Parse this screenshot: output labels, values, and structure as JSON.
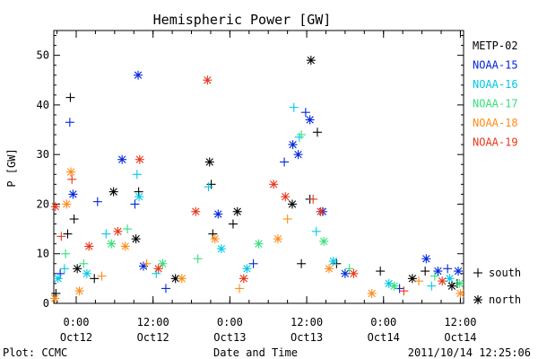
{
  "chart_data": {
    "type": "scatter",
    "title": "Hemispheric Power [GW]",
    "ylabel": "P [GW]",
    "xlabel": "Date and Time",
    "xlim": [
      "2011-10-11T20:30",
      "2011-10-14T12:30"
    ],
    "ylim": [
      0,
      55
    ],
    "yticks": [
      0,
      10,
      20,
      30,
      40,
      50
    ],
    "xticks": [
      {
        "t": "2011-10-12T00:00",
        "time": "0:00",
        "date": "Oct12"
      },
      {
        "t": "2011-10-12T12:00",
        "time": "12:00",
        "date": "Oct12"
      },
      {
        "t": "2011-10-13T00:00",
        "time": "0:00",
        "date": "Oct13"
      },
      {
        "t": "2011-10-13T12:00",
        "time": "12:00",
        "date": "Oct13"
      },
      {
        "t": "2011-10-14T00:00",
        "time": "0:00",
        "date": "Oct14"
      },
      {
        "t": "2011-10-14T12:00",
        "time": "12:00",
        "date": "Oct14"
      }
    ],
    "grid": false,
    "legend_position": "right",
    "marker_legend": [
      {
        "marker": "plus",
        "label": "south"
      },
      {
        "marker": "asterisk",
        "label": "north"
      }
    ],
    "series": [
      {
        "name": "METP-02",
        "color": "#000000",
        "points": [
          {
            "x": "2011-10-11T20:50",
            "y": 2,
            "m": "plus"
          },
          {
            "x": "2011-10-11T22:40",
            "y": 14,
            "m": "plus"
          },
          {
            "x": "2011-10-11T23:05",
            "y": 41.5,
            "m": "plus"
          },
          {
            "x": "2011-10-11T23:40",
            "y": 17,
            "m": "plus"
          },
          {
            "x": "2011-10-12T00:10",
            "y": 7,
            "m": "asterisk"
          },
          {
            "x": "2011-10-12T02:50",
            "y": 5,
            "m": "plus"
          },
          {
            "x": "2011-10-12T05:50",
            "y": 22.5,
            "m": "asterisk"
          },
          {
            "x": "2011-10-12T09:45",
            "y": 22.5,
            "m": "plus"
          },
          {
            "x": "2011-10-12T09:20",
            "y": 13,
            "m": "asterisk"
          },
          {
            "x": "2011-10-12T15:30",
            "y": 5,
            "m": "asterisk"
          },
          {
            "x": "2011-10-12T20:50",
            "y": 28.5,
            "m": "asterisk"
          },
          {
            "x": "2011-10-12T21:05",
            "y": 24,
            "m": "plus"
          },
          {
            "x": "2011-10-12T21:20",
            "y": 14,
            "m": "plus"
          },
          {
            "x": "2011-10-13T00:30",
            "y": 16,
            "m": "plus"
          },
          {
            "x": "2011-10-13T01:10",
            "y": 18.5,
            "m": "asterisk"
          },
          {
            "x": "2011-10-13T09:45",
            "y": 20,
            "m": "asterisk"
          },
          {
            "x": "2011-10-13T11:10",
            "y": 8,
            "m": "plus"
          },
          {
            "x": "2011-10-13T12:40",
            "y": 49,
            "m": "asterisk"
          },
          {
            "x": "2011-10-13T13:40",
            "y": 34.5,
            "m": "plus"
          },
          {
            "x": "2011-10-13T12:30",
            "y": 21,
            "m": "plus"
          },
          {
            "x": "2011-10-13T16:40",
            "y": 8,
            "m": "plus"
          },
          {
            "x": "2011-10-13T23:30",
            "y": 6.5,
            "m": "plus"
          },
          {
            "x": "2011-10-14T04:30",
            "y": 5,
            "m": "asterisk"
          },
          {
            "x": "2011-10-14T06:30",
            "y": 6.5,
            "m": "plus"
          },
          {
            "x": "2011-10-14T10:40",
            "y": 3.5,
            "m": "asterisk"
          },
          {
            "x": "2011-10-14T11:30",
            "y": 4,
            "m": "plus"
          }
        ]
      },
      {
        "name": "NOAA-15",
        "color": "#0026d9",
        "points": [
          {
            "x": "2011-10-11T21:30",
            "y": 6,
            "m": "plus"
          },
          {
            "x": "2011-10-11T23:00",
            "y": 36.5,
            "m": "plus"
          },
          {
            "x": "2011-10-11T23:30",
            "y": 22,
            "m": "asterisk"
          },
          {
            "x": "2011-10-12T03:20",
            "y": 20.5,
            "m": "plus"
          },
          {
            "x": "2011-10-12T07:10",
            "y": 29,
            "m": "asterisk"
          },
          {
            "x": "2011-10-12T09:10",
            "y": 20,
            "m": "plus"
          },
          {
            "x": "2011-10-12T09:40",
            "y": 46,
            "m": "asterisk"
          },
          {
            "x": "2011-10-12T10:30",
            "y": 7.5,
            "m": "asterisk"
          },
          {
            "x": "2011-10-12T14:00",
            "y": 3,
            "m": "plus"
          },
          {
            "x": "2011-10-12T22:10",
            "y": 18,
            "m": "asterisk"
          },
          {
            "x": "2011-10-13T03:40",
            "y": 8,
            "m": "plus"
          },
          {
            "x": "2011-10-13T08:30",
            "y": 28.5,
            "m": "plus"
          },
          {
            "x": "2011-10-13T09:50",
            "y": 32,
            "m": "asterisk"
          },
          {
            "x": "2011-10-13T10:40",
            "y": 30,
            "m": "asterisk"
          },
          {
            "x": "2011-10-13T11:50",
            "y": 38.5,
            "m": "plus"
          },
          {
            "x": "2011-10-13T12:30",
            "y": 37,
            "m": "asterisk"
          },
          {
            "x": "2011-10-13T14:30",
            "y": 18.5,
            "m": "asterisk"
          },
          {
            "x": "2011-10-13T18:00",
            "y": 6,
            "m": "asterisk"
          },
          {
            "x": "2011-10-14T02:30",
            "y": 3,
            "m": "plus"
          },
          {
            "x": "2011-10-14T06:40",
            "y": 9,
            "m": "asterisk"
          },
          {
            "x": "2011-10-14T08:30",
            "y": 6.5,
            "m": "asterisk"
          },
          {
            "x": "2011-10-14T10:00",
            "y": 7,
            "m": "plus"
          },
          {
            "x": "2011-10-14T11:40",
            "y": 6.5,
            "m": "asterisk"
          }
        ]
      },
      {
        "name": "NOAA-16",
        "color": "#00c8e6",
        "points": [
          {
            "x": "2011-10-11T21:10",
            "y": 5,
            "m": "asterisk"
          },
          {
            "x": "2011-10-11T22:10",
            "y": 7,
            "m": "plus"
          },
          {
            "x": "2011-10-12T01:40",
            "y": 6,
            "m": "asterisk"
          },
          {
            "x": "2011-10-12T04:40",
            "y": 14,
            "m": "plus"
          },
          {
            "x": "2011-10-12T09:50",
            "y": 21.5,
            "m": "asterisk"
          },
          {
            "x": "2011-10-12T09:30",
            "y": 26,
            "m": "plus"
          },
          {
            "x": "2011-10-12T12:30",
            "y": 6,
            "m": "plus"
          },
          {
            "x": "2011-10-12T20:40",
            "y": 23.5,
            "m": "plus"
          },
          {
            "x": "2011-10-12T22:40",
            "y": 11,
            "m": "asterisk"
          },
          {
            "x": "2011-10-13T02:40",
            "y": 7,
            "m": "asterisk"
          },
          {
            "x": "2011-10-13T10:00",
            "y": 39.5,
            "m": "plus"
          },
          {
            "x": "2011-10-13T10:50",
            "y": 33.5,
            "m": "plus"
          },
          {
            "x": "2011-10-13T13:30",
            "y": 14.5,
            "m": "plus"
          },
          {
            "x": "2011-10-13T16:10",
            "y": 8.5,
            "m": "asterisk"
          },
          {
            "x": "2011-10-14T00:50",
            "y": 4,
            "m": "asterisk"
          },
          {
            "x": "2011-10-14T07:30",
            "y": 3.5,
            "m": "plus"
          },
          {
            "x": "2011-10-14T10:20",
            "y": 5,
            "m": "asterisk"
          }
        ]
      },
      {
        "name": "NOAA-17",
        "color": "#33e07a",
        "points": [
          {
            "x": "2011-10-11T22:20",
            "y": 10,
            "m": "plus"
          },
          {
            "x": "2011-10-12T01:10",
            "y": 8,
            "m": "plus"
          },
          {
            "x": "2011-10-12T05:30",
            "y": 12,
            "m": "asterisk"
          },
          {
            "x": "2011-10-12T08:00",
            "y": 15,
            "m": "plus"
          },
          {
            "x": "2011-10-12T13:30",
            "y": 8,
            "m": "asterisk"
          },
          {
            "x": "2011-10-12T19:00",
            "y": 9,
            "m": "plus"
          },
          {
            "x": "2011-10-13T04:30",
            "y": 12,
            "m": "asterisk"
          },
          {
            "x": "2011-10-13T11:10",
            "y": 34,
            "m": "plus"
          },
          {
            "x": "2011-10-13T14:40",
            "y": 12.5,
            "m": "asterisk"
          },
          {
            "x": "2011-10-13T18:40",
            "y": 7,
            "m": "plus"
          },
          {
            "x": "2011-10-14T01:40",
            "y": 3.5,
            "m": "asterisk"
          },
          {
            "x": "2011-10-14T08:00",
            "y": 5.5,
            "m": "plus"
          },
          {
            "x": "2011-10-14T11:50",
            "y": 4,
            "m": "asterisk"
          }
        ]
      },
      {
        "name": "NOAA-18",
        "color": "#ff8c1a",
        "points": [
          {
            "x": "2011-10-11T20:40",
            "y": 1,
            "m": "asterisk"
          },
          {
            "x": "2011-10-11T22:30",
            "y": 20,
            "m": "asterisk"
          },
          {
            "x": "2011-10-11T23:10",
            "y": 26.5,
            "m": "asterisk"
          },
          {
            "x": "2011-10-12T00:30",
            "y": 2.5,
            "m": "asterisk"
          },
          {
            "x": "2011-10-12T04:00",
            "y": 5.5,
            "m": "plus"
          },
          {
            "x": "2011-10-12T07:40",
            "y": 11.5,
            "m": "asterisk"
          },
          {
            "x": "2011-10-12T11:00",
            "y": 8,
            "m": "plus"
          },
          {
            "x": "2011-10-12T16:30",
            "y": 5,
            "m": "asterisk"
          },
          {
            "x": "2011-10-12T21:40",
            "y": 13,
            "m": "asterisk"
          },
          {
            "x": "2011-10-13T01:30",
            "y": 3,
            "m": "plus"
          },
          {
            "x": "2011-10-13T07:30",
            "y": 13,
            "m": "asterisk"
          },
          {
            "x": "2011-10-13T09:00",
            "y": 17,
            "m": "plus"
          },
          {
            "x": "2011-10-13T15:30",
            "y": 7,
            "m": "asterisk"
          },
          {
            "x": "2011-10-13T22:10",
            "y": 2,
            "m": "asterisk"
          },
          {
            "x": "2011-10-14T05:30",
            "y": 4.5,
            "m": "plus"
          },
          {
            "x": "2011-10-14T12:00",
            "y": 2,
            "m": "asterisk"
          }
        ]
      },
      {
        "name": "NOAA-19",
        "color": "#e8361a",
        "points": [
          {
            "x": "2011-10-11T20:45",
            "y": 19.5,
            "m": "asterisk"
          },
          {
            "x": "2011-10-11T21:40",
            "y": 13.5,
            "m": "plus"
          },
          {
            "x": "2011-10-11T23:20",
            "y": 25,
            "m": "plus"
          },
          {
            "x": "2011-10-12T02:00",
            "y": 11.5,
            "m": "asterisk"
          },
          {
            "x": "2011-10-12T06:30",
            "y": 14.5,
            "m": "asterisk"
          },
          {
            "x": "2011-10-12T09:55",
            "y": 29,
            "m": "asterisk"
          },
          {
            "x": "2011-10-12T12:50",
            "y": 7,
            "m": "asterisk"
          },
          {
            "x": "2011-10-12T18:40",
            "y": 18.5,
            "m": "asterisk"
          },
          {
            "x": "2011-10-12T20:30",
            "y": 45,
            "m": "asterisk"
          },
          {
            "x": "2011-10-13T02:10",
            "y": 5,
            "m": "asterisk"
          },
          {
            "x": "2011-10-13T06:50",
            "y": 24,
            "m": "asterisk"
          },
          {
            "x": "2011-10-13T08:40",
            "y": 21.5,
            "m": "asterisk"
          },
          {
            "x": "2011-10-13T13:00",
            "y": 21,
            "m": "plus"
          },
          {
            "x": "2011-10-13T14:10",
            "y": 18.5,
            "m": "asterisk"
          },
          {
            "x": "2011-10-13T19:20",
            "y": 6,
            "m": "asterisk"
          },
          {
            "x": "2011-10-14T03:10",
            "y": 2.5,
            "m": "plus"
          },
          {
            "x": "2011-10-14T09:10",
            "y": 4.5,
            "m": "asterisk"
          }
        ]
      }
    ]
  },
  "footer": {
    "left": "Plot: CCMC",
    "center": "Date and Time",
    "right": "2011/10/14 12:25:06"
  }
}
